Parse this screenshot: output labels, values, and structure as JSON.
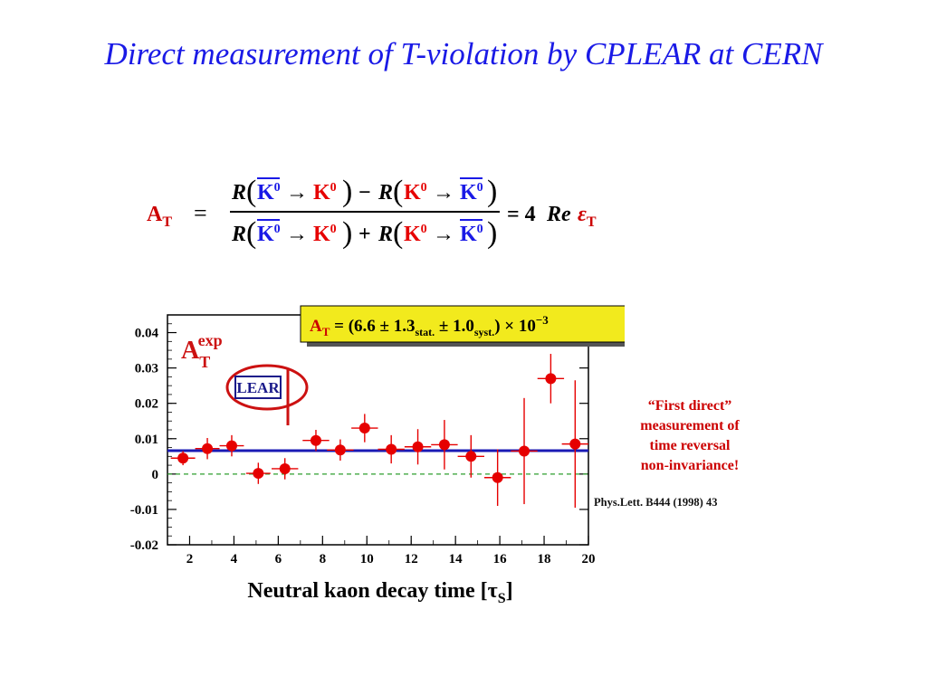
{
  "title": "Direct measurement of T-violation by CPLEAR at CERN",
  "equation": {
    "lhs_main": "A",
    "lhs_sub": "T",
    "equals": "=",
    "num_R1": "R",
    "kbar": "K",
    "k": "K",
    "zero": "0",
    "arrow": "→",
    "minus": "−",
    "plus": "+",
    "rhs": "= 4",
    "re": "Re",
    "eps": "ε",
    "eps_sub": "T"
  },
  "result_box": {
    "a": "A",
    "a_sub": "T",
    "mid": " = (6.6 ± 1.3",
    "stat": "stat.",
    "mid2": " ± 1.0",
    "syst": "syst.",
    "end": ") × 10",
    "exp": "−3"
  },
  "plot_label": {
    "main": "A",
    "sub": "T",
    "sup": "exp"
  },
  "logo_text": "LEAR",
  "side_note": [
    "“First direct”",
    "measurement of",
    "time reversal",
    "non-invariance!"
  ],
  "reference": "Phys.Lett. B444 (1998) 43",
  "colors": {
    "title": "#1a1ae6",
    "red": "#e60000",
    "blue": "#1a1ae6",
    "fit": "#1a1ab4",
    "zero_line": "#2e9e2e",
    "box": "#f2ea1d"
  },
  "chart_data": {
    "type": "scatter",
    "xlabel_main": "Neutral kaon decay time [τ",
    "xlabel_sub": "S",
    "xlabel_end": "]",
    "xlim": [
      1,
      20
    ],
    "ylim": [
      -0.02,
      0.045
    ],
    "xticks": [
      2,
      4,
      6,
      8,
      10,
      12,
      14,
      16,
      18,
      20
    ],
    "yticks": [
      {
        "v": 0.04,
        "label": "0.04"
      },
      {
        "v": 0.03,
        "label": "0.03"
      },
      {
        "v": 0.02,
        "label": "0.02"
      },
      {
        "v": 0.01,
        "label": "0.01"
      },
      {
        "v": 0,
        "label": "0"
      },
      {
        "v": -0.01,
        "label": "-0.01"
      },
      {
        "v": -0.02,
        "label": "-0.02"
      }
    ],
    "points": [
      {
        "x": 1.7,
        "y": 0.0045,
        "xerr": 0.55,
        "yerr": 0.002
      },
      {
        "x": 2.8,
        "y": 0.0072,
        "xerr": 0.55,
        "yerr": 0.003
      },
      {
        "x": 3.9,
        "y": 0.008,
        "xerr": 0.55,
        "yerr": 0.003
      },
      {
        "x": 5.1,
        "y": 0.0002,
        "xerr": 0.55,
        "yerr": 0.003
      },
      {
        "x": 6.3,
        "y": 0.0015,
        "xerr": 0.6,
        "yerr": 0.003
      },
      {
        "x": 7.7,
        "y": 0.0095,
        "xerr": 0.6,
        "yerr": 0.003
      },
      {
        "x": 8.8,
        "y": 0.0068,
        "xerr": 0.6,
        "yerr": 0.003
      },
      {
        "x": 9.9,
        "y": 0.013,
        "xerr": 0.6,
        "yerr": 0.004
      },
      {
        "x": 11.1,
        "y": 0.007,
        "xerr": 0.6,
        "yerr": 0.004
      },
      {
        "x": 12.3,
        "y": 0.0077,
        "xerr": 0.6,
        "yerr": 0.005
      },
      {
        "x": 13.5,
        "y": 0.0083,
        "xerr": 0.6,
        "yerr": 0.007
      },
      {
        "x": 14.7,
        "y": 0.005,
        "xerr": 0.6,
        "yerr": 0.006
      },
      {
        "x": 15.9,
        "y": -0.001,
        "xerr": 0.6,
        "yerr": 0.008
      },
      {
        "x": 17.1,
        "y": 0.0065,
        "xerr": 0.6,
        "yerr": 0.015
      },
      {
        "x": 18.3,
        "y": 0.027,
        "xerr": 0.6,
        "yerr": 0.007
      },
      {
        "x": 19.4,
        "y": 0.0085,
        "xerr": 0.6,
        "yerr": 0.018
      }
    ],
    "fit_value": 0.0066,
    "zero_line": 0
  }
}
